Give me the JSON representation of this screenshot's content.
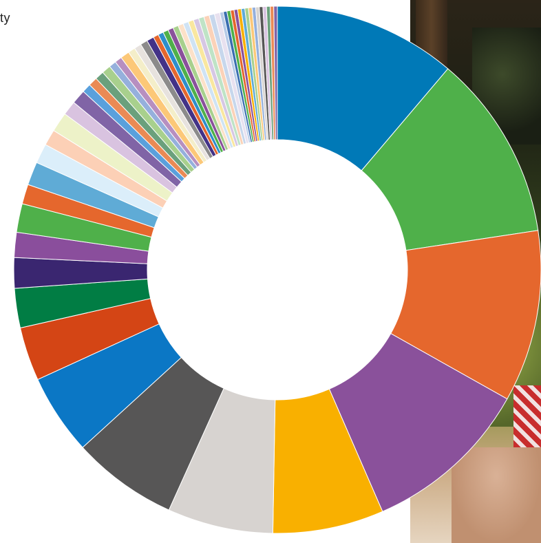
{
  "corner_text": "ty",
  "photo": {
    "description_icon": "photo-background"
  },
  "chart_data": {
    "type": "pie",
    "donut": true,
    "start": "top, clockwise",
    "slices": [
      {
        "value": 10.2,
        "color": "#0079b7"
      },
      {
        "value": 10.4,
        "color": "#4fb04a"
      },
      {
        "value": 9.6,
        "color": "#e5672d"
      },
      {
        "value": 9.4,
        "color": "#8a519b"
      },
      {
        "value": 6.2,
        "color": "#f9b000"
      },
      {
        "value": 5.9,
        "color": "#d7d3d0"
      },
      {
        "value": 5.9,
        "color": "#575656"
      },
      {
        "value": 4.5,
        "color": "#0b77c5"
      },
      {
        "value": 3.0,
        "color": "#d44515"
      },
      {
        "value": 2.2,
        "color": "#017d44"
      },
      {
        "value": 1.7,
        "color": "#3a2670"
      },
      {
        "value": 1.4,
        "color": "#8a4e9c"
      },
      {
        "value": 1.6,
        "color": "#4fb04a"
      },
      {
        "value": 1.1,
        "color": "#e5672d"
      },
      {
        "value": 1.3,
        "color": "#5fabd6"
      },
      {
        "value": 1.1,
        "color": "#dbeefa"
      },
      {
        "value": 0.9,
        "color": "#fcd0b6"
      },
      {
        "value": 1.1,
        "color": "#edf2c8"
      },
      {
        "value": 0.8,
        "color": "#d9c3e0"
      },
      {
        "value": 0.8,
        "color": "#8064a6"
      },
      {
        "value": 0.5,
        "color": "#5aa0dc"
      },
      {
        "value": 0.5,
        "color": "#ea8a55"
      },
      {
        "value": 0.5,
        "color": "#6ba07c"
      },
      {
        "value": 0.5,
        "color": "#a8d08d"
      },
      {
        "value": 0.4,
        "color": "#95b0dc"
      },
      {
        "value": 0.4,
        "color": "#b78fc0"
      },
      {
        "value": 0.5,
        "color": "#fcc878"
      },
      {
        "value": 0.4,
        "color": "#f4eec9"
      },
      {
        "value": 0.4,
        "color": "#e7e2de"
      },
      {
        "value": 0.4,
        "color": "#8c8b8b"
      },
      {
        "value": 0.4,
        "color": "#433287"
      },
      {
        "value": 0.3,
        "color": "#e5672d"
      },
      {
        "value": 0.3,
        "color": "#2e8ecb"
      },
      {
        "value": 0.3,
        "color": "#4fb04a"
      },
      {
        "value": 0.3,
        "color": "#8a519b"
      },
      {
        "value": 0.3,
        "color": "#a8d08d"
      },
      {
        "value": 0.3,
        "color": "#fce1c8"
      },
      {
        "value": 0.3,
        "color": "#cfe3f4"
      },
      {
        "value": 0.3,
        "color": "#f9e79f"
      },
      {
        "value": 0.3,
        "color": "#d6c7e4"
      },
      {
        "value": 0.3,
        "color": "#bfe3c6"
      },
      {
        "value": 0.3,
        "color": "#fbd2b8"
      },
      {
        "value": 0.3,
        "color": "#c7d7ec"
      },
      {
        "value": 0.3,
        "color": "#e8e1ef"
      },
      {
        "value": 0.2,
        "color": "#b5c9e6"
      },
      {
        "value": 0.2,
        "color": "#3a6eb0"
      },
      {
        "value": 0.2,
        "color": "#4fb04a"
      },
      {
        "value": 0.2,
        "color": "#e5672d"
      },
      {
        "value": 0.2,
        "color": "#8a519b"
      },
      {
        "value": 0.2,
        "color": "#f9b000"
      },
      {
        "value": 0.2,
        "color": "#5fabd6"
      },
      {
        "value": 0.2,
        "color": "#a8d08d"
      },
      {
        "value": 0.2,
        "color": "#fcc878"
      },
      {
        "value": 0.2,
        "color": "#95b0dc"
      },
      {
        "value": 0.2,
        "color": "#d7d3d0"
      },
      {
        "value": 0.2,
        "color": "#575656"
      },
      {
        "value": 0.2,
        "color": "#d9c3e0"
      },
      {
        "value": 0.2,
        "color": "#6ba07c"
      },
      {
        "value": 0.2,
        "color": "#ea8a55"
      },
      {
        "value": 0.2,
        "color": "#8064a6"
      }
    ]
  }
}
